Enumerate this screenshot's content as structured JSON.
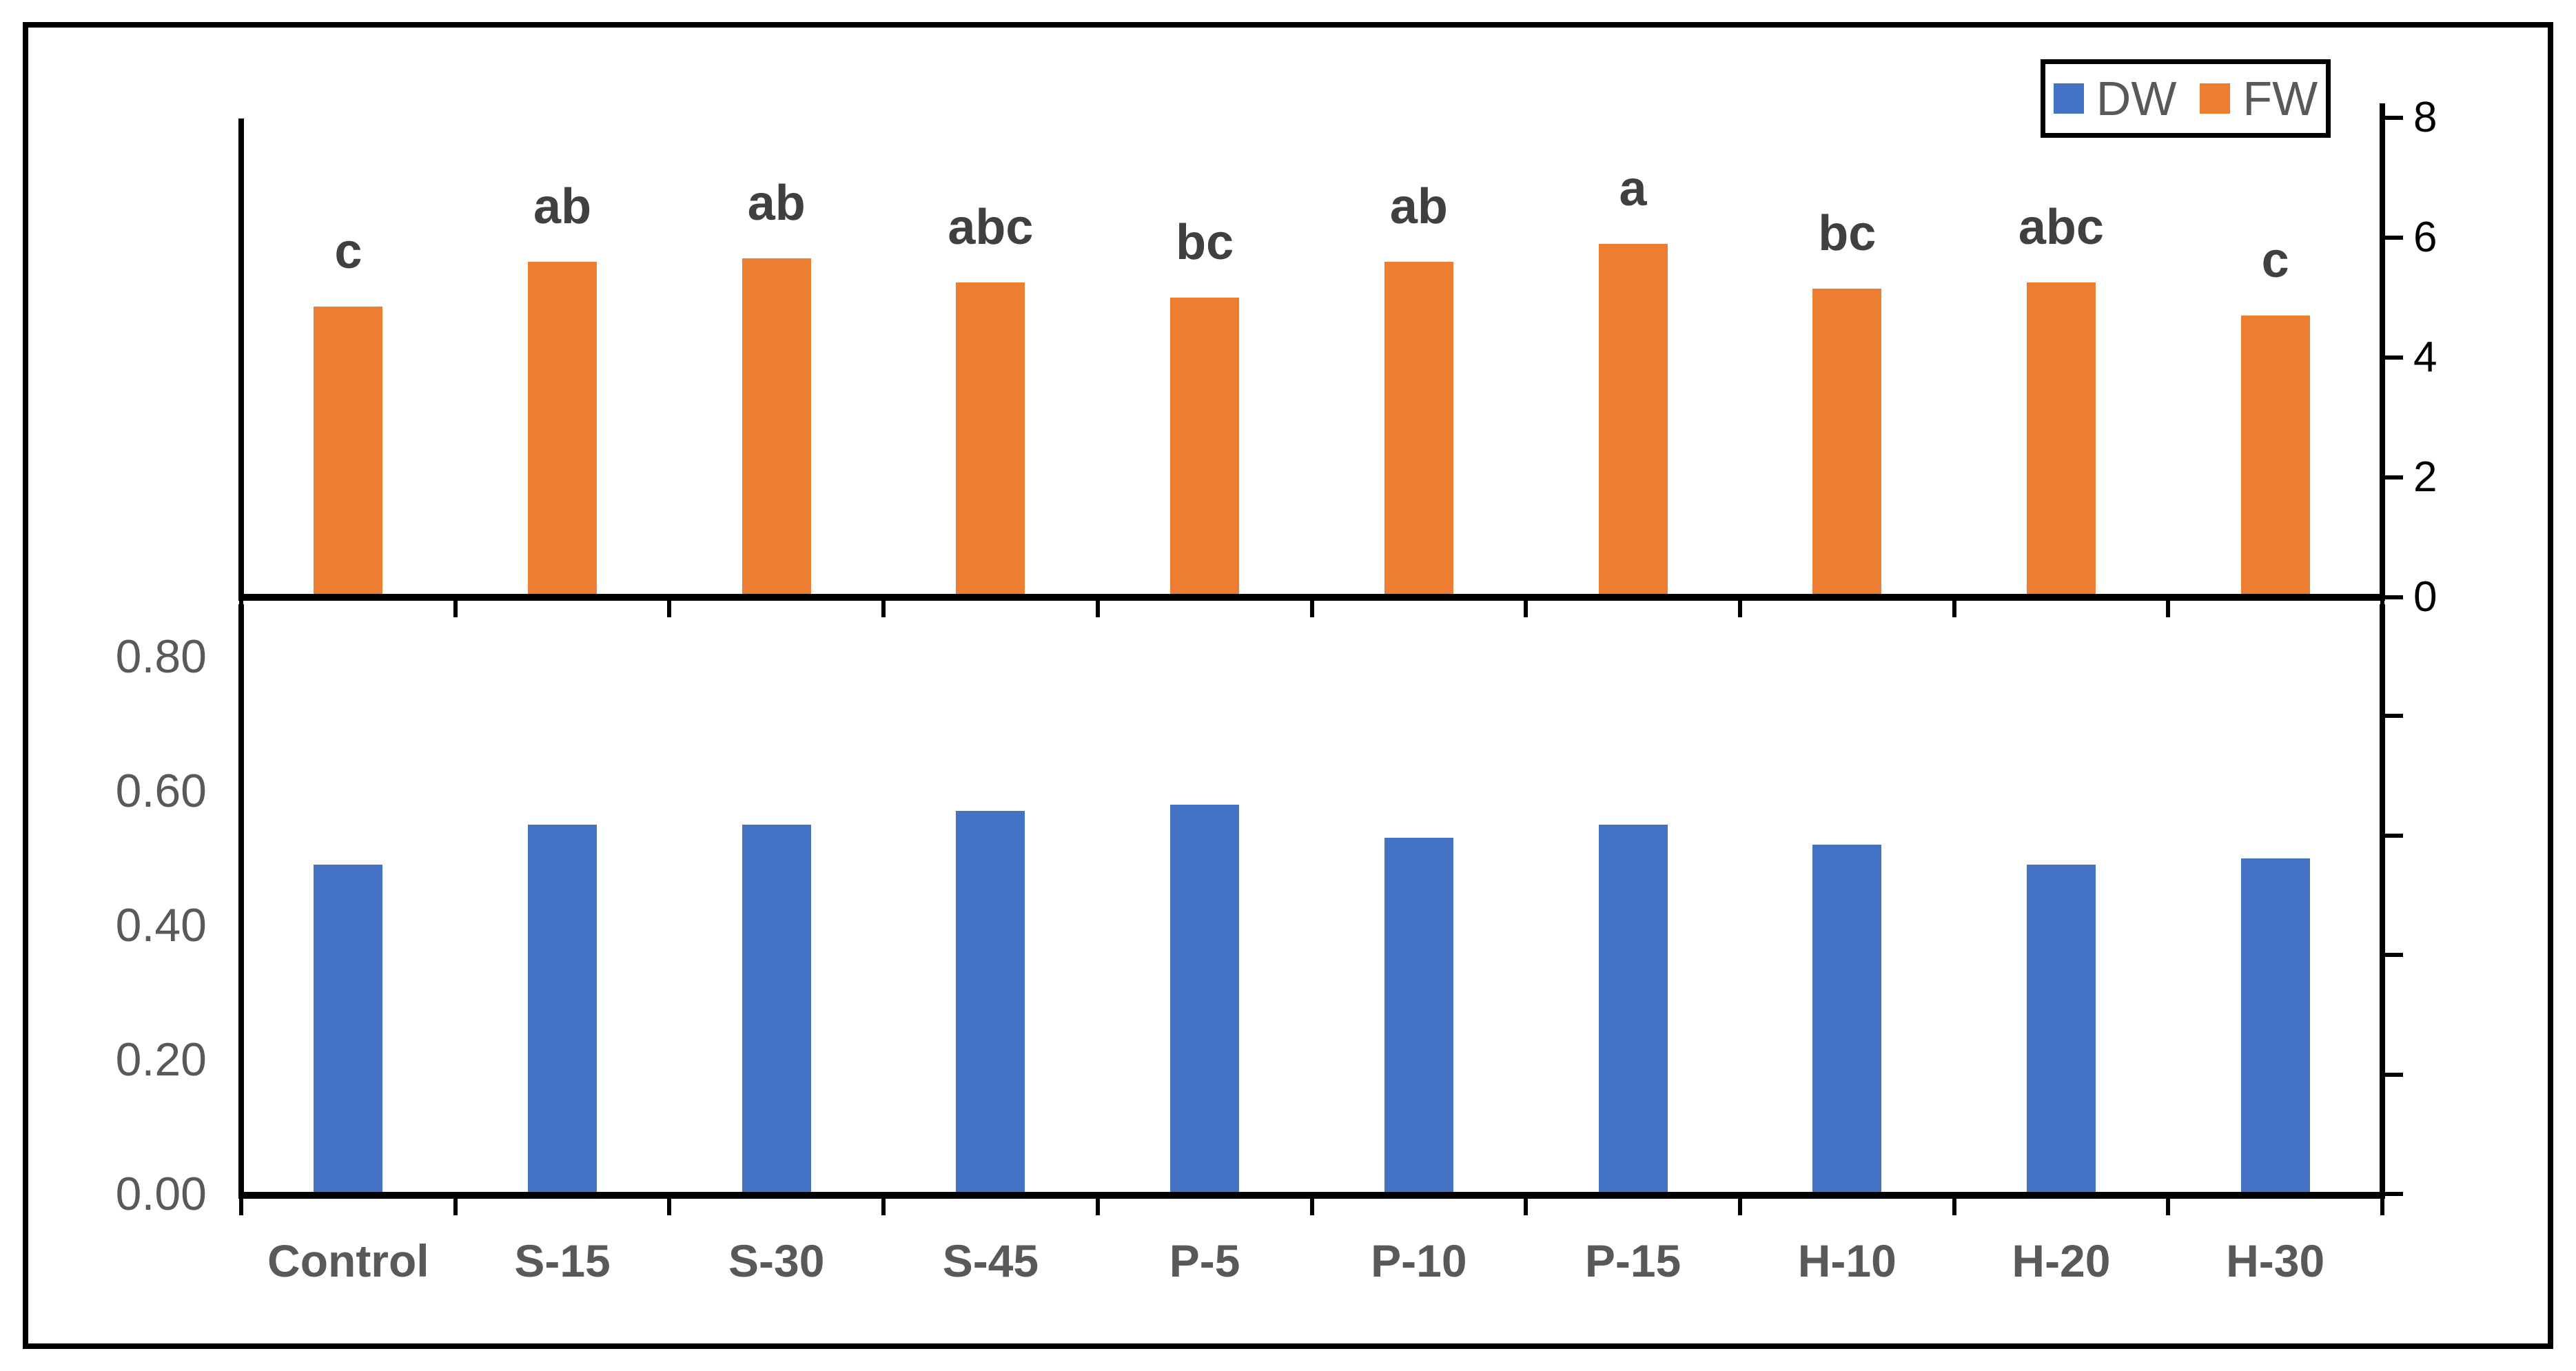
{
  "figure": {
    "background": "#ffffff",
    "border_color": "#000000"
  },
  "legend": {
    "position": "top-right",
    "items": [
      {
        "label": "DW",
        "color": "#4472C4"
      },
      {
        "label": "FW",
        "color": "#ED7D31"
      }
    ]
  },
  "colors": {
    "dw_bar": "#4472C4",
    "fw_bar": "#ED7D31",
    "axis_line": "#000000",
    "axis_label_gray": "#595959",
    "significance_letter": "#404040",
    "right_axis_number": "#000000"
  },
  "chart_data": {
    "type": "bar",
    "layout": "two stacked panels sharing x categories; FW bars in top panel (right axis 0-8), DW bars in bottom panel (left axis 0.00-0.80)",
    "categories": [
      "Control",
      "S-15",
      "S-30",
      "S-45",
      "P-5",
      "P-10",
      "P-15",
      "H-10",
      "H-20",
      "H-30"
    ],
    "series": [
      {
        "name": "DW",
        "panel": "bottom",
        "color": "#4472C4",
        "values": [
          0.49,
          0.55,
          0.55,
          0.57,
          0.58,
          0.53,
          0.55,
          0.52,
          0.49,
          0.5
        ]
      },
      {
        "name": "FW",
        "panel": "top",
        "color": "#ED7D31",
        "values": [
          4.85,
          5.6,
          5.65,
          5.25,
          5.0,
          5.6,
          5.9,
          5.15,
          5.25,
          4.7
        ]
      }
    ],
    "significance_letters": [
      "c",
      "ab",
      "ab",
      "abc",
      "bc",
      "ab",
      "a",
      "bc",
      "abc",
      "c"
    ],
    "top_panel": {
      "series": "FW",
      "ylim": [
        0,
        8
      ],
      "tick_values": [
        0,
        2,
        4,
        6,
        8
      ],
      "tick_labels": [
        "0",
        "2",
        "4",
        "6",
        "8"
      ],
      "axis_label_side": "right",
      "grid": false
    },
    "bottom_panel": {
      "series": "DW",
      "ylim": [
        0,
        0.8
      ],
      "tick_values": [
        0.0,
        0.2,
        0.4,
        0.6,
        0.8
      ],
      "tick_labels": [
        "0.00",
        "0.20",
        "0.40",
        "0.60",
        "0.80"
      ],
      "axis_label_side": "left",
      "unlabeled_right_tick_intervals": 5,
      "grid": false
    },
    "title": "",
    "xlabel": "",
    "ylabel": ""
  }
}
